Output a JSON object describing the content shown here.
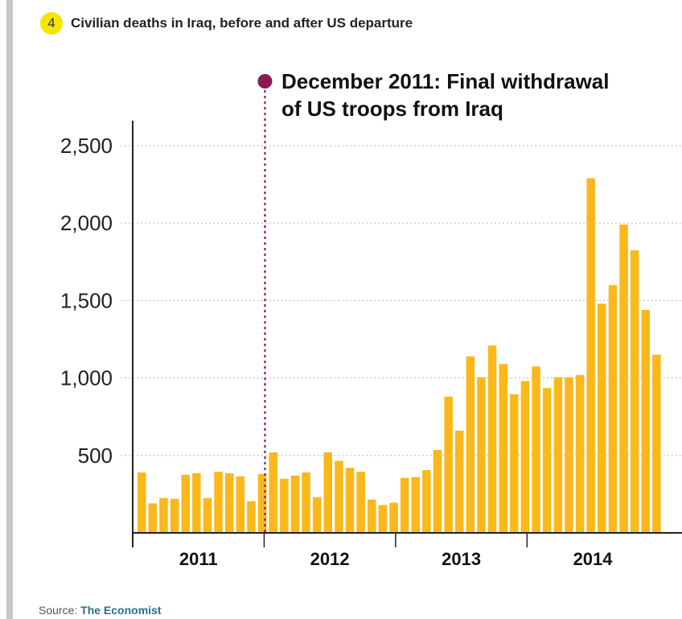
{
  "header": {
    "badge": "4",
    "title": "Civilian deaths in Iraq, before and after US departure"
  },
  "annotation": {
    "line1": "December 2011: Final withdrawal",
    "line2": "of US troops from Iraq",
    "color": "#8b1a55",
    "at_index": 12
  },
  "source": {
    "label": "Source:",
    "name": "The Economist"
  },
  "colors": {
    "bar": "#fbb81b",
    "grid": "#bbbbbb",
    "axis": "#222222"
  },
  "chart_data": {
    "type": "bar",
    "title": "",
    "xlabel": "",
    "ylabel": "",
    "ylim": [
      0,
      2500
    ],
    "yticks": [
      500,
      1000,
      1500,
      2000,
      2500
    ],
    "ytick_labels": [
      "500",
      "1,000",
      "1,500",
      "2,000",
      "2,500"
    ],
    "grid": true,
    "year_labels": [
      "2011",
      "2012",
      "2013",
      "2014"
    ],
    "categories": [
      "2011-01",
      "2011-02",
      "2011-03",
      "2011-04",
      "2011-05",
      "2011-06",
      "2011-07",
      "2011-08",
      "2011-09",
      "2011-10",
      "2011-11",
      "2011-12",
      "2012-01",
      "2012-02",
      "2012-03",
      "2012-04",
      "2012-05",
      "2012-06",
      "2012-07",
      "2012-08",
      "2012-09",
      "2012-10",
      "2012-11",
      "2012-12",
      "2013-01",
      "2013-02",
      "2013-03",
      "2013-04",
      "2013-05",
      "2013-06",
      "2013-07",
      "2013-08",
      "2013-09",
      "2013-10",
      "2013-11",
      "2013-12",
      "2014-01",
      "2014-02",
      "2014-03",
      "2014-04",
      "2014-05",
      "2014-06",
      "2014-07",
      "2014-08",
      "2014-09",
      "2014-10",
      "2014-11",
      "2014-12",
      "2015-01",
      "2015-02",
      "2015-03"
    ],
    "values": [
      390,
      190,
      225,
      220,
      375,
      385,
      225,
      395,
      385,
      365,
      205,
      380,
      520,
      350,
      370,
      390,
      230,
      520,
      465,
      420,
      395,
      215,
      180,
      195,
      355,
      360,
      405,
      535,
      880,
      660,
      1140,
      1005,
      1210,
      1090,
      895,
      980,
      1075,
      935,
      1005,
      1005,
      1020,
      2290,
      1480,
      1600,
      1990,
      1825,
      1440,
      1150,
      0,
      0,
      0
    ]
  }
}
